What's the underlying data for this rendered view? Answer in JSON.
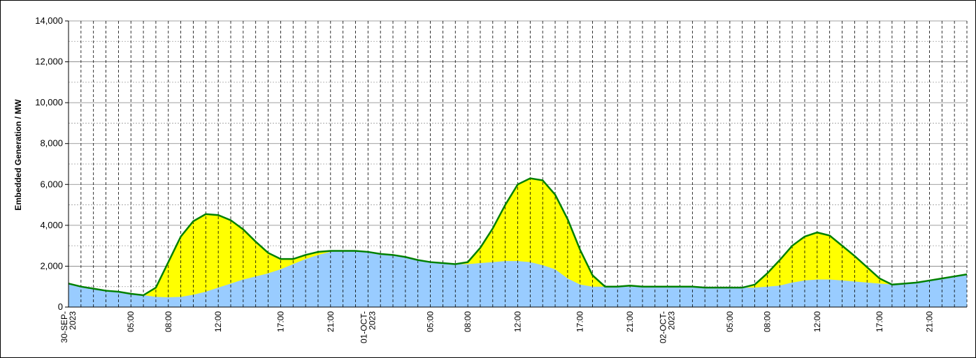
{
  "chart_data": {
    "type": "area",
    "ylabel": "Embedded Generation / MW",
    "xlabel": "",
    "ylim": [
      0,
      14000
    ],
    "yticks": [
      0,
      2000,
      4000,
      6000,
      8000,
      10000,
      12000,
      14000
    ],
    "ytick_labels": [
      "0",
      "2,000",
      "4,000",
      "6,000",
      "8,000",
      "10,000",
      "12,000",
      "14,000"
    ],
    "x_start": "30-SEP-2023 00:00",
    "x_step_hours": 1,
    "x_count": 73,
    "grid": true,
    "colors": {
      "lower_fill": "#99ccff",
      "upper_fill": "#ffff00",
      "total_line": "#008000",
      "grid": "#000000"
    },
    "xticks": [
      {
        "label": "30-SEP-\n2023",
        "hour": 0
      },
      {
        "label": "05:00",
        "hour": 5
      },
      {
        "label": "08:00",
        "hour": 8
      },
      {
        "label": "12:00",
        "hour": 12
      },
      {
        "label": "17:00",
        "hour": 17
      },
      {
        "label": "21:00",
        "hour": 21
      },
      {
        "label": "01-OCT-\n2023",
        "hour": 24
      },
      {
        "label": "05:00",
        "hour": 29
      },
      {
        "label": "08:00",
        "hour": 32
      },
      {
        "label": "12:00",
        "hour": 36
      },
      {
        "label": "17:00",
        "hour": 41
      },
      {
        "label": "21:00",
        "hour": 45
      },
      {
        "label": "02-OCT-\n2023",
        "hour": 48
      },
      {
        "label": "05:00",
        "hour": 53
      },
      {
        "label": "08:00",
        "hour": 56
      },
      {
        "label": "12:00",
        "hour": 60
      },
      {
        "label": "17:00",
        "hour": 65
      },
      {
        "label": "21:00",
        "hour": 69
      }
    ],
    "series": [
      {
        "values": [
          1150,
          1000,
          900,
          800,
          750,
          650,
          580,
          500,
          480,
          500,
          600,
          750,
          950,
          1150,
          1350,
          1500,
          1650,
          1850,
          2100,
          2350,
          2550,
          2700,
          2750,
          2750,
          2700,
          2600,
          2550,
          2450,
          2300,
          2200,
          2150,
          2100,
          2100,
          2150,
          2200,
          2250,
          2250,
          2200,
          2050,
          1850,
          1400,
          1100,
          1000,
          1000,
          1000,
          1000,
          1000,
          1000,
          1000,
          1000,
          1000,
          950,
          950,
          950,
          950,
          950,
          1000,
          1050,
          1200,
          1300,
          1350,
          1350,
          1300,
          1250,
          1200,
          1150,
          1100,
          1150,
          1200,
          1300,
          1400,
          1500,
          1600
        ]
      },
      {
        "values": [
          1150,
          1000,
          900,
          800,
          750,
          650,
          580,
          950,
          2200,
          3450,
          4200,
          4550,
          4500,
          4250,
          3800,
          3200,
          2650,
          2350,
          2350,
          2550,
          2700,
          2750,
          2750,
          2750,
          2700,
          2600,
          2550,
          2450,
          2300,
          2200,
          2150,
          2100,
          2200,
          2900,
          3850,
          5000,
          6000,
          6300,
          6200,
          5500,
          4300,
          2800,
          1550,
          1000,
          1000,
          1050,
          1000,
          1000,
          1000,
          1000,
          1000,
          950,
          950,
          950,
          950,
          1100,
          1650,
          2300,
          3000,
          3450,
          3650,
          3500,
          3000,
          2500,
          1950,
          1400,
          1100,
          1150,
          1200,
          1300,
          1400,
          1500,
          1600
        ]
      }
    ]
  }
}
